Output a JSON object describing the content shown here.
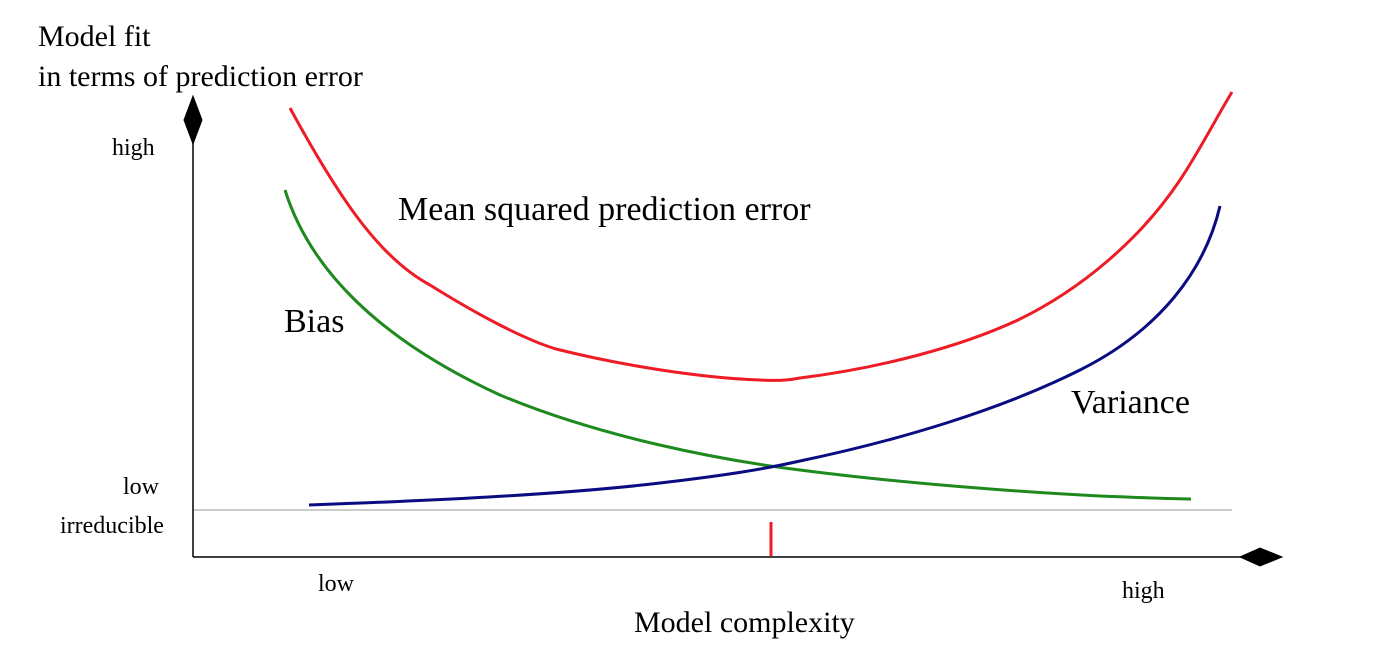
{
  "y_axis": {
    "title_line1": "Model fit",
    "title_line2": "in terms of prediction error",
    "tick_high": "high",
    "tick_low": "low",
    "tick_irreducible": "irreducible"
  },
  "x_axis": {
    "title": "Model complexity",
    "tick_low": "low",
    "tick_high": "high"
  },
  "curves": {
    "mse": {
      "label": "Mean squared prediction error",
      "color": "#ee1c25"
    },
    "bias": {
      "label": "Bias",
      "color": "#1e8a1e"
    },
    "variance": {
      "label": "Variance",
      "color": "#0b0b82"
    }
  },
  "optimum_marker_color": "#ee1c25",
  "irreducible_line_color": "#bbbbbb",
  "axis_color": "#000000"
}
